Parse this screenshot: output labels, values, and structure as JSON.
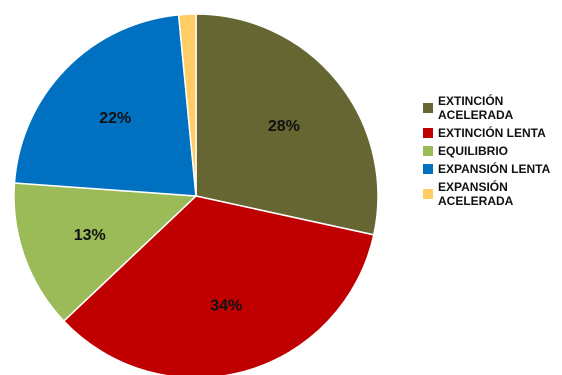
{
  "chart_data": {
    "type": "pie",
    "slices": [
      {
        "label": "EXTINCIÓN\nACELERADA",
        "value": 28,
        "value_label": "28%",
        "color": "#666633"
      },
      {
        "label": "EXTINCIÓN LENTA",
        "value": 34,
        "value_label": "34%",
        "color": "#c00000"
      },
      {
        "label": "EQUILIBRIO",
        "value": 13,
        "value_label": "13%",
        "color": "#9bbb59"
      },
      {
        "label": "EXPANSIÓN LENTA",
        "value": 22,
        "value_label": "22%",
        "color": "#0070c0"
      },
      {
        "label": "EXPANSIÓN\nACELERADA",
        "value": 1.5,
        "value_label": "",
        "color": "#ffcc66"
      }
    ],
    "start_angle": "top (12 o'clock)",
    "direction": "clockwise",
    "legend_position": "right"
  }
}
